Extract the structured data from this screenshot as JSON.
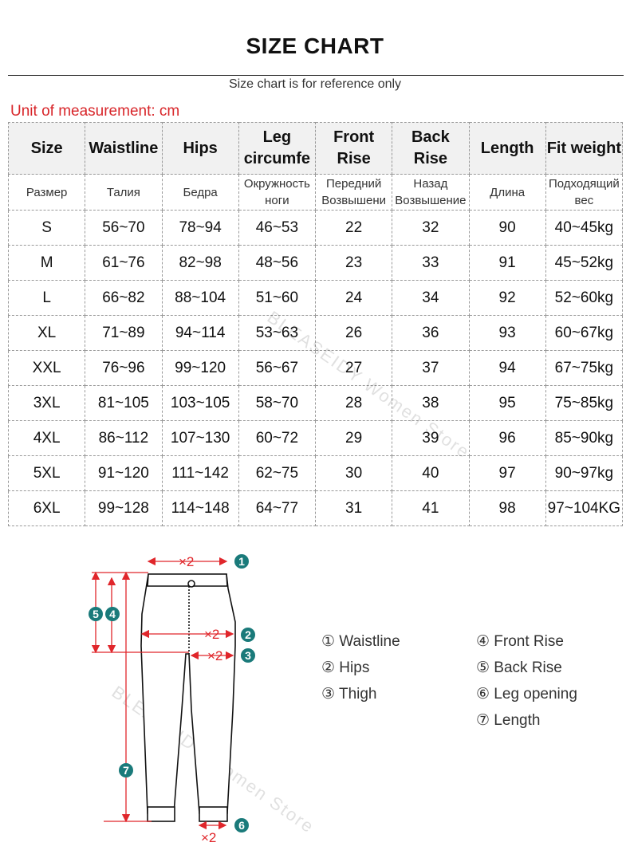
{
  "title": "SIZE CHART",
  "subtitle": "Size chart is for reference only",
  "unit": "Unit of measurement: cm",
  "columns": [
    "Size",
    "Waistline",
    "Hips",
    "Leg circumfe",
    "Front Rise",
    "Back Rise",
    "Length",
    "Fit weight"
  ],
  "columns_ru": [
    "Размер",
    "Талия",
    "Бедра",
    "Окружность ноги",
    "Передний Возвышени",
    "Назад Возвышение",
    "Длина",
    "Подходящий вес"
  ],
  "rows": [
    [
      "S",
      "56~70",
      "78~94",
      "46~53",
      "22",
      "32",
      "90",
      "40~45kg"
    ],
    [
      "M",
      "61~76",
      "82~98",
      "48~56",
      "23",
      "33",
      "91",
      "45~52kg"
    ],
    [
      "L",
      "66~82",
      "88~104",
      "51~60",
      "24",
      "34",
      "92",
      "52~60kg"
    ],
    [
      "XL",
      "71~89",
      "94~114",
      "53~63",
      "26",
      "36",
      "93",
      "60~67kg"
    ],
    [
      "XXL",
      "76~96",
      "99~120",
      "56~67",
      "27",
      "37",
      "94",
      "67~75kg"
    ],
    [
      "3XL",
      "81~105",
      "103~105",
      "58~70",
      "28",
      "38",
      "95",
      "75~85kg"
    ],
    [
      "4XL",
      "86~112",
      "107~130",
      "60~72",
      "29",
      "39",
      "96",
      "85~90kg"
    ],
    [
      "5XL",
      "91~120",
      "111~142",
      "62~75",
      "30",
      "40",
      "97",
      "90~97kg"
    ],
    [
      "6XL",
      "99~128",
      "114~148",
      "64~77",
      "31",
      "41",
      "98",
      "97~104KG"
    ]
  ],
  "watermark": "BLEASEIDY Women Store",
  "diagram": {
    "multiplier": "×2",
    "markers": [
      "1",
      "2",
      "3",
      "4",
      "5",
      "6",
      "7"
    ],
    "accent": "#e0262b",
    "badge": "#1a7a7a"
  },
  "legend": [
    "① Waistline",
    "② Hips",
    "③ Thigh",
    "④ Front Rise",
    "⑤ Back Rise",
    "⑥ Leg opening",
    "⑦ Length"
  ]
}
